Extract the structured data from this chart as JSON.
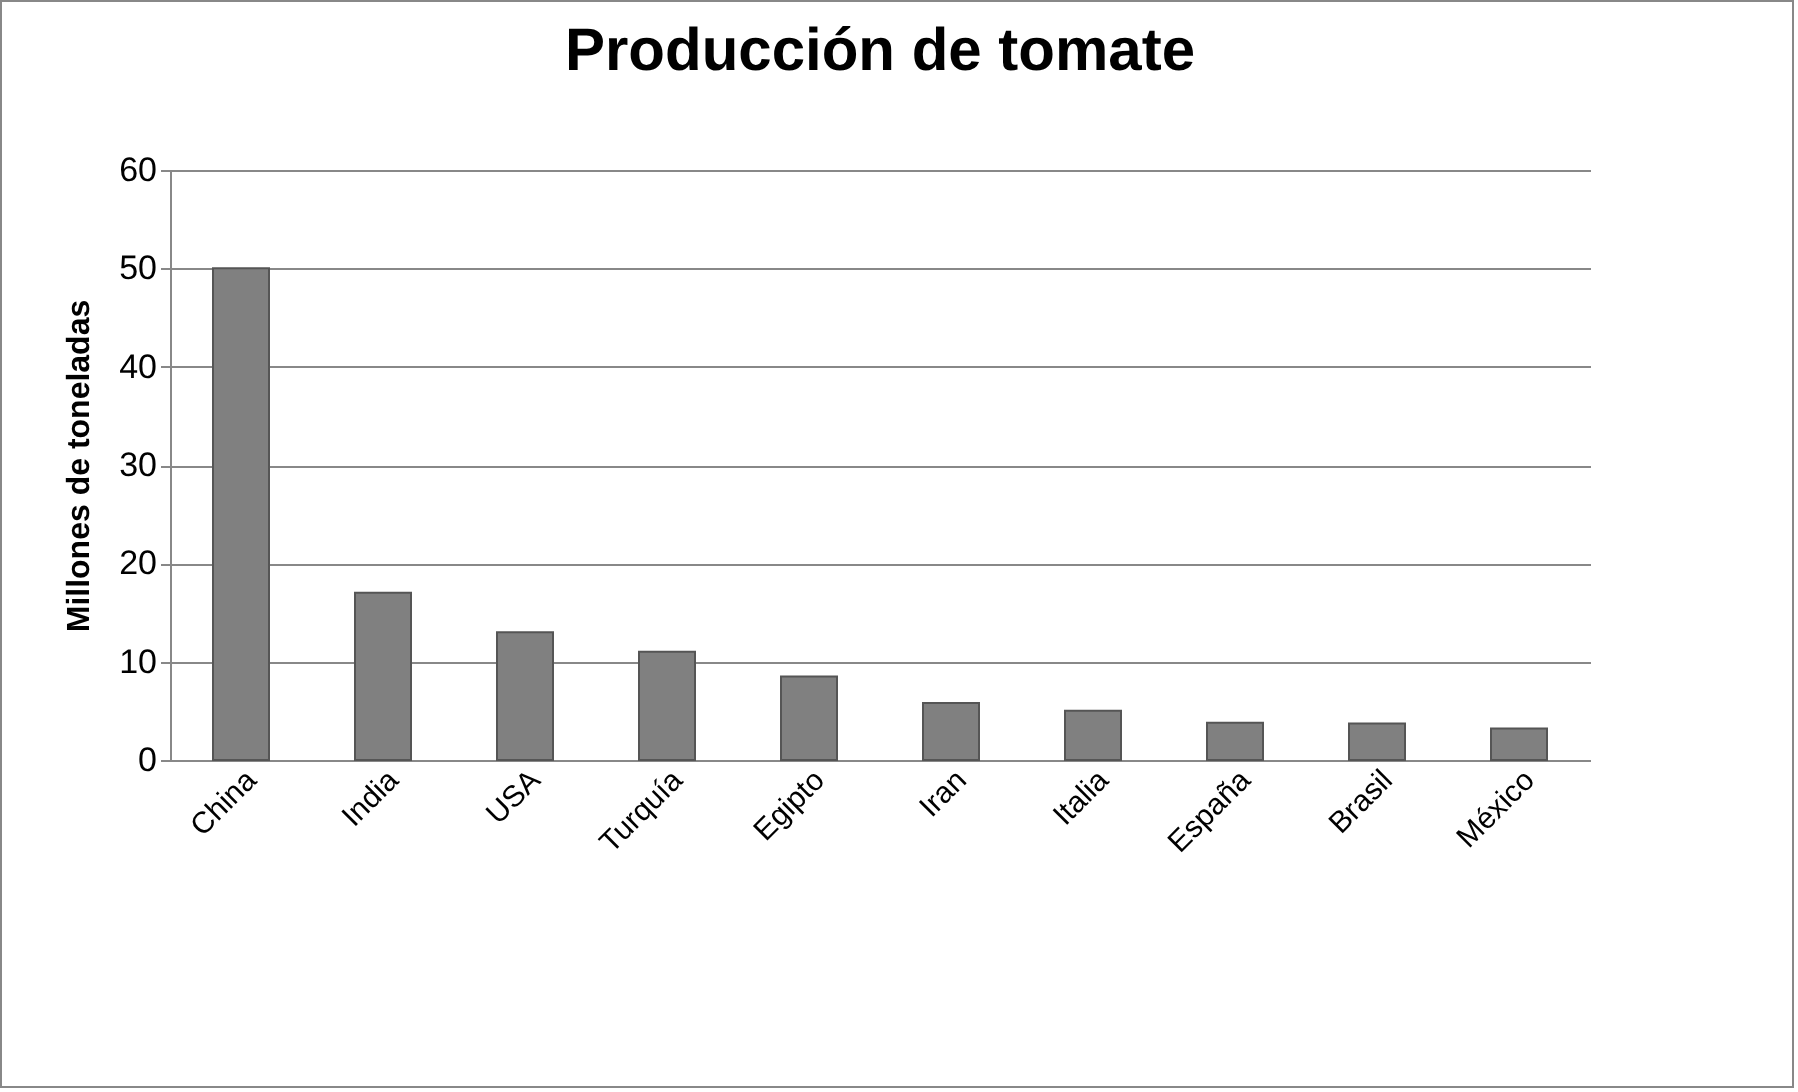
{
  "chart_data": {
    "type": "bar",
    "title": "Producción de tomate",
    "ylabel": "Millones de toneladas",
    "categories": [
      "China",
      "India",
      "USA",
      "Turquía",
      "Egipto",
      "Iran",
      "Italia",
      "España",
      "Brasil",
      "México"
    ],
    "values": [
      50,
      17,
      13,
      11,
      8.5,
      5.8,
      5,
      3.8,
      3.7,
      3.2
    ],
    "color": "#808080",
    "ylim": [
      0,
      60
    ],
    "yticks": [
      0,
      10,
      20,
      30,
      40,
      50,
      60
    ],
    "grid": "y"
  }
}
